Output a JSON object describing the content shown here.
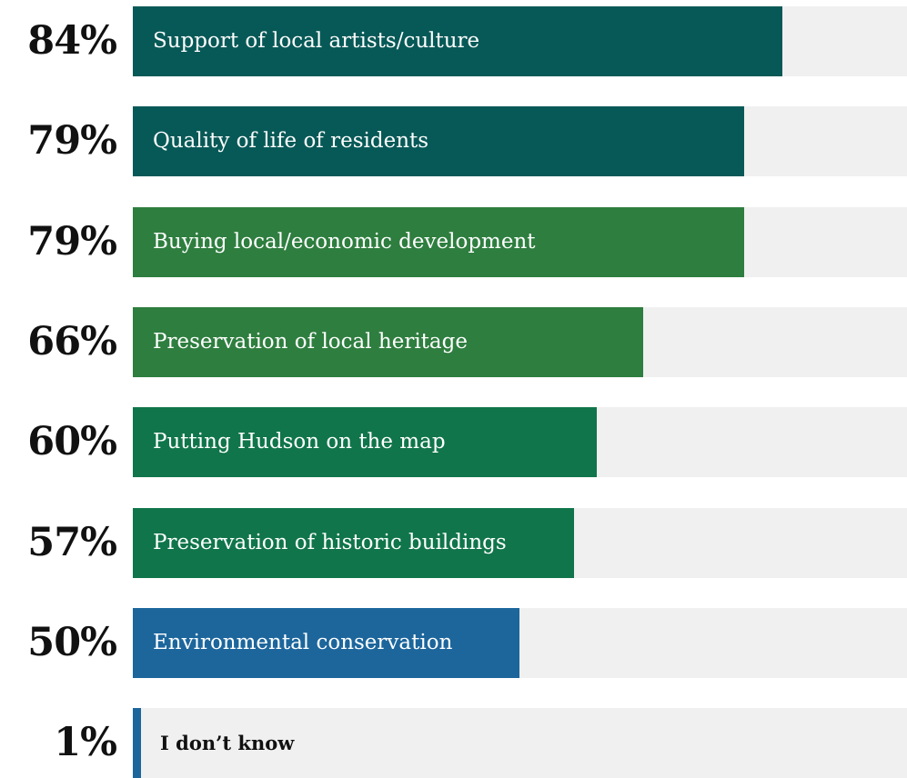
{
  "chart_data": {
    "type": "bar",
    "orientation": "horizontal",
    "title": "",
    "xlabel": "",
    "ylabel": "",
    "xlim": [
      0,
      100
    ],
    "grid": false,
    "categories": [
      "Support of local artists/culture",
      "Quality of life of residents",
      "Buying local/economic development",
      "Preservation of local heritage",
      "Putting Hudson on the map",
      "Preservation of historic buildings",
      "Environmental conservation",
      "I don’t know"
    ],
    "values": [
      84,
      79,
      79,
      66,
      60,
      57,
      50,
      1
    ],
    "value_labels": [
      "84%",
      "79%",
      "79%",
      "66%",
      "60%",
      "57%",
      "50%",
      "1%"
    ],
    "bar_colors": [
      "#075957",
      "#075957",
      "#2e7e3f",
      "#2e7e3f",
      "#10754a",
      "#10754a",
      "#1c669c",
      "#1c669c"
    ],
    "track_color": "#eff0ef"
  }
}
